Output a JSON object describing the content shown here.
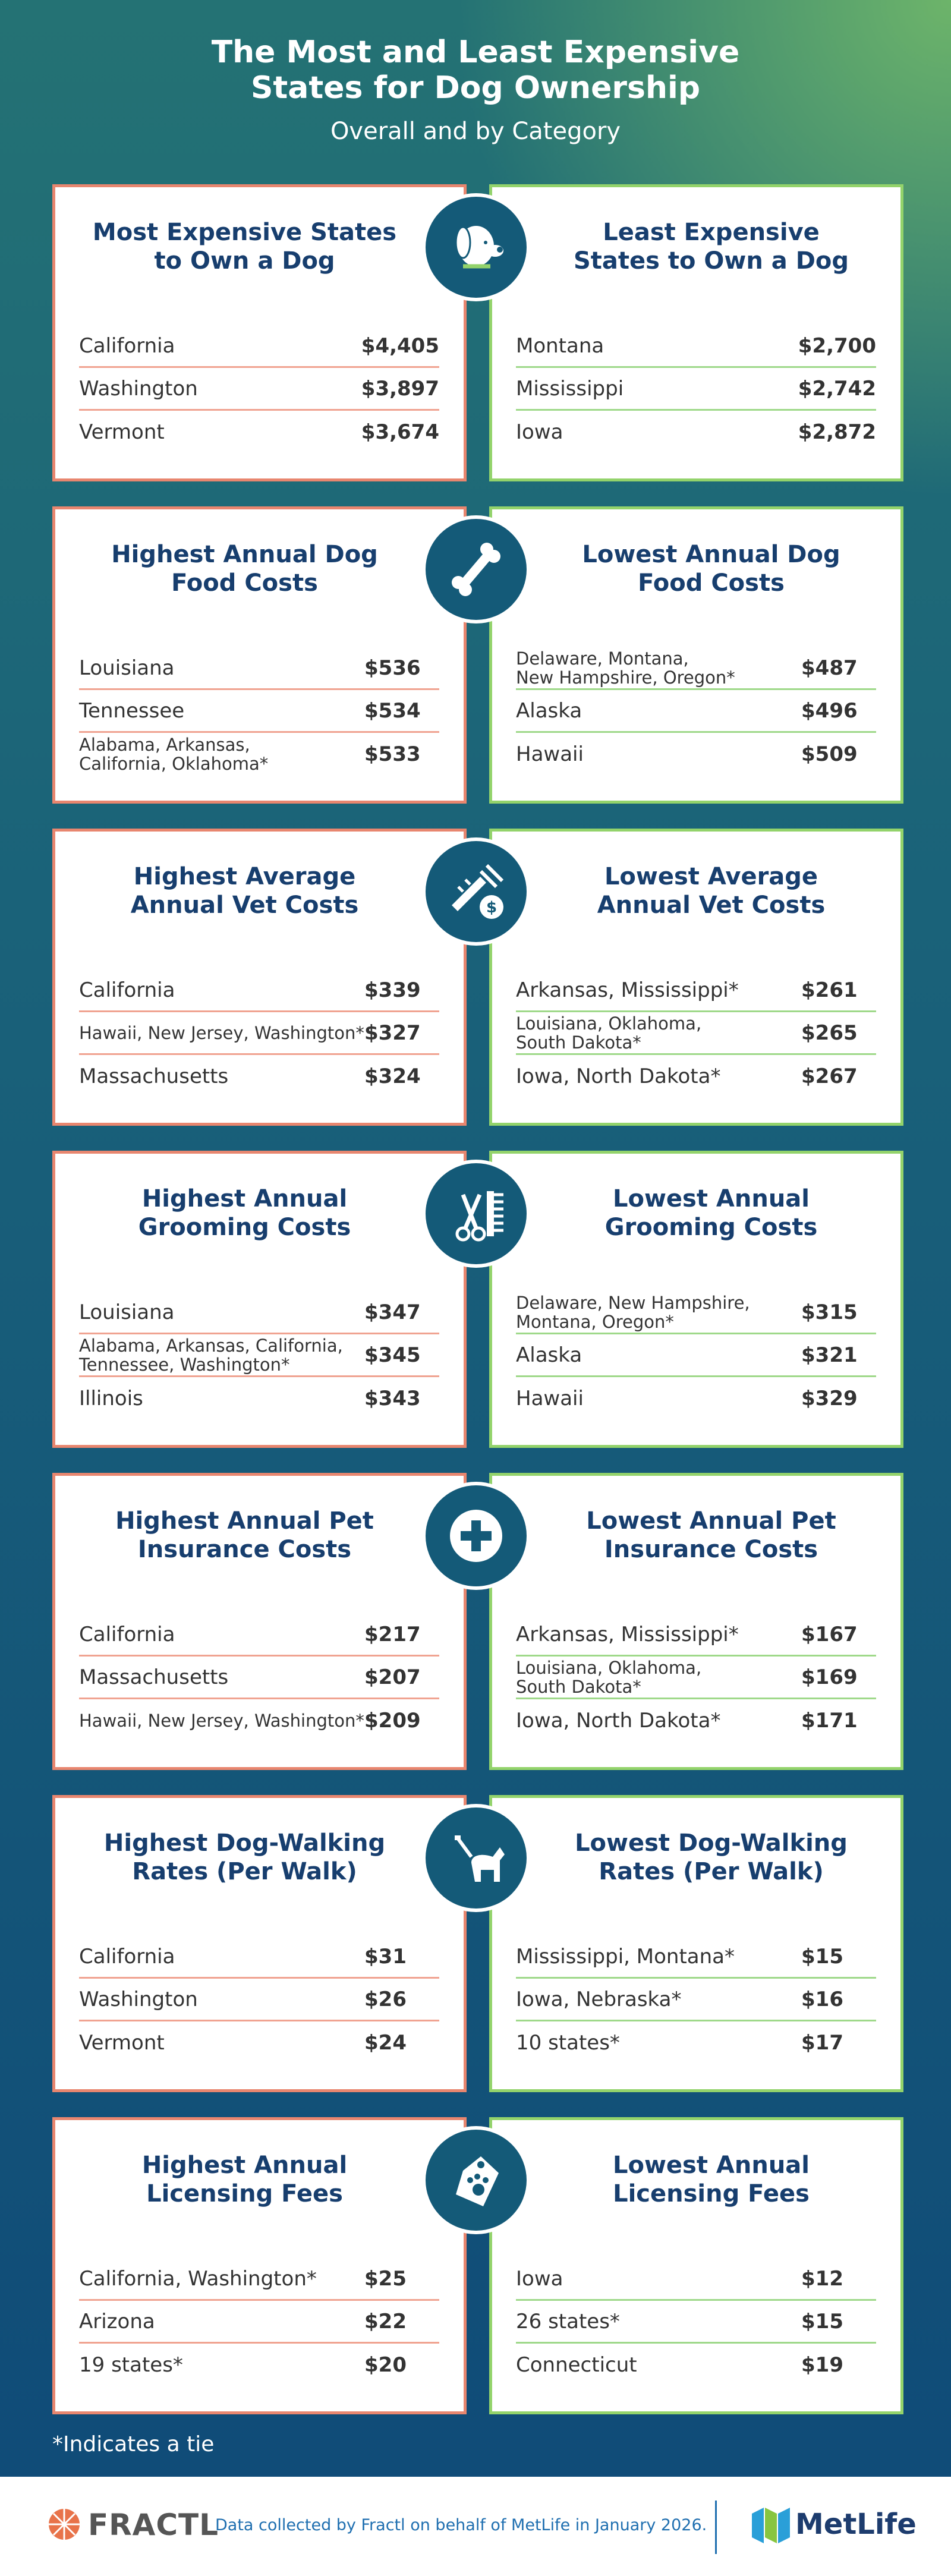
{
  "header": {
    "title": "The Most and Least Expensive States for Dog Ownership",
    "subtitle": "Overall and by Category"
  },
  "sections": [
    {
      "left": {
        "title": "Most Expensive States to Own a Dog",
        "rows": [
          {
            "label": "California",
            "value": "$4,405"
          },
          {
            "label": "Washington",
            "value": "$3,897"
          },
          {
            "label": "Vermont",
            "value": "$3,674"
          }
        ]
      },
      "right": {
        "title": "Least Expensive States to Own a Dog",
        "rows": [
          {
            "label": "Montana",
            "value": "$2,700"
          },
          {
            "label": "Mississippi",
            "value": "$2,742"
          },
          {
            "label": "Iowa",
            "value": "$2,872"
          }
        ]
      }
    },
    {
      "left": {
        "title": "Highest Annual Dog Food Costs",
        "rows": [
          {
            "label": "Louisiana",
            "value": "$536"
          },
          {
            "label": "Tennessee",
            "value": "$534"
          },
          {
            "label": "Alabama, Arkansas,\nCalifornia, Oklahoma*",
            "value": "$533"
          }
        ]
      },
      "right": {
        "title": "Lowest Annual Dog Food Costs",
        "rows": [
          {
            "label": "Delaware, Montana,\nNew Hampshire, Oregon*",
            "value": "$487"
          },
          {
            "label": "Alaska",
            "value": "$496"
          },
          {
            "label": "Hawaii",
            "value": "$509"
          }
        ]
      }
    },
    {
      "left": {
        "title": "Highest Average Annual Vet Costs",
        "rows": [
          {
            "label": "California",
            "value": "$339"
          },
          {
            "label": "Hawaii, New Jersey, Washington*",
            "value": "$327"
          },
          {
            "label": "Massachusetts",
            "value": "$324"
          }
        ]
      },
      "right": {
        "title": "Lowest Average Annual Vet Costs",
        "rows": [
          {
            "label": "Arkansas, Mississippi*",
            "value": "$261"
          },
          {
            "label": "Louisiana, Oklahoma,\nSouth Dakota*",
            "value": "$265"
          },
          {
            "label": "Iowa, North Dakota*",
            "value": "$267"
          }
        ]
      }
    },
    {
      "left": {
        "title": "Highest Annual Grooming Costs",
        "rows": [
          {
            "label": "Louisiana",
            "value": "$347"
          },
          {
            "label": "Alabama, Arkansas, California,\nTennessee, Washington*",
            "value": "$345"
          },
          {
            "label": "Illinois",
            "value": "$343"
          }
        ]
      },
      "right": {
        "title": "Lowest Annual Grooming Costs",
        "rows": [
          {
            "label": "Delaware, New Hampshire,\nMontana, Oregon*",
            "value": "$315"
          },
          {
            "label": "Alaska",
            "value": "$321"
          },
          {
            "label": "Hawaii",
            "value": "$329"
          }
        ]
      }
    },
    {
      "left": {
        "title": "Highest Annual Pet Insurance Costs",
        "rows": [
          {
            "label": "California",
            "value": "$217"
          },
          {
            "label": "Massachusetts",
            "value": "$207"
          },
          {
            "label": "Hawaii, New Jersey, Washington*",
            "value": "$209"
          }
        ]
      },
      "right": {
        "title": "Lowest Annual Pet Insurance Costs",
        "rows": [
          {
            "label": "Arkansas, Mississippi*",
            "value": "$167"
          },
          {
            "label": "Louisiana, Oklahoma,\nSouth Dakota*",
            "value": "$169"
          },
          {
            "label": "Iowa, North Dakota*",
            "value": "$171"
          }
        ]
      }
    },
    {
      "left": {
        "title": "Highest Dog-Walking Rates (Per Walk)",
        "rows": [
          {
            "label": "California",
            "value": "$31"
          },
          {
            "label": "Washington",
            "value": "$26"
          },
          {
            "label": "Vermont",
            "value": "$24"
          }
        ]
      },
      "right": {
        "title": "Lowest Dog-Walking Rates (Per Walk)",
        "rows": [
          {
            "label": "Mississippi, Montana*",
            "value": "$15"
          },
          {
            "label": "Iowa, Nebraska*",
            "value": "$16"
          },
          {
            "label": "10 states*",
            "value": "$17"
          }
        ]
      }
    },
    {
      "left": {
        "title": "Highest Annual Licensing Fees",
        "rows": [
          {
            "label": "California, Washington*",
            "value": "$25"
          },
          {
            "label": "Arizona",
            "value": "$22"
          },
          {
            "label": "19 states*",
            "value": "$20"
          }
        ]
      },
      "right": {
        "title": "Lowest Annual Licensing Fees",
        "rows": [
          {
            "label": "Iowa",
            "value": "$12"
          },
          {
            "label": "26 states*",
            "value": "$15"
          },
          {
            "label": "Connecticut",
            "value": "$19"
          }
        ]
      }
    }
  ],
  "footnote": "*Indicates a tie",
  "footer": {
    "brand": "FRACTL",
    "note": "Data collected by Fractl on behalf of MetLife in January 2026.",
    "partner": "MetLife"
  }
}
